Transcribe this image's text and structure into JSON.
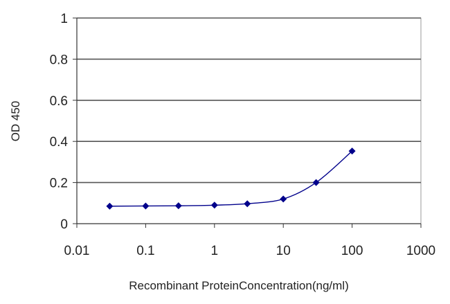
{
  "chart_data": {
    "type": "line",
    "xlabel": "Recombinant ProteinConcentration(ng/ml)",
    "ylabel": "OD 450",
    "x_scale": "log",
    "xlim": [
      0.01,
      1000
    ],
    "ylim": [
      0,
      1
    ],
    "x_ticks": [
      "0.01",
      "0.1",
      "1",
      "10",
      "100",
      "1000"
    ],
    "y_ticks": [
      "0",
      "0.2",
      "0.4",
      "0.6",
      "0.8",
      "1"
    ],
    "grid": "horizontal",
    "legend": "none",
    "series": [
      {
        "x": [
          0.03,
          0.1,
          0.3,
          1,
          3,
          10,
          30,
          100
        ],
        "y": [
          0.085,
          0.086,
          0.087,
          0.09,
          0.097,
          0.12,
          0.2,
          0.353
        ],
        "color": "#00008b"
      }
    ]
  }
}
